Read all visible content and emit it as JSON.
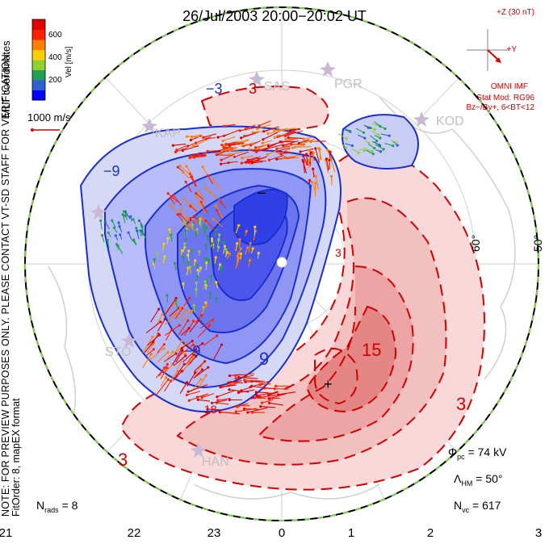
{
  "title": "26/Jul/2003 20:00−20:02 UT",
  "coordinate_label": "MLT coordinates",
  "notes": {
    "preview": "NOTE: FOR PREVIEW PURPOSES ONLY. PLEASE CONTACT VT-SD STAFF FOR VERIFICATION.",
    "fit": "FitOrder: 8, mapEX format"
  },
  "velocity_scale": {
    "label": "Vel [m/s]",
    "ticks": [
      "600",
      "400",
      "200"
    ],
    "colors": [
      "#0000ff",
      "#3060d0",
      "#20a050",
      "#90d030",
      "#ffd000",
      "#ff8000",
      "#ff2000",
      "#e00000"
    ],
    "reference_vector_label": "1000 m/s"
  },
  "imf": {
    "z_label": "+Z (30 nT)",
    "y_label": "+Y",
    "source": "OMNI IMF",
    "stat_mod": "Stat Mod: RG96",
    "bin": "Bz−/By+, 6<BT<12",
    "color": "#d40000"
  },
  "stations": [
    "SAS",
    "PGR",
    "KOD",
    "KAP",
    "STO",
    "HAN"
  ],
  "latitude_labels": [
    "60°",
    "50°"
  ],
  "contour_labels": [
    "−3",
    "3",
    "−9",
    "9",
    "−9",
    "15",
    "3",
    "3",
    "3",
    "18"
  ],
  "extrema_markers": [
    "−",
    "+"
  ],
  "potential_colors": {
    "negative": "#3a4fe0",
    "positive": "#e04040"
  },
  "stats": {
    "phi_pc": {
      "symbol": "Φ",
      "sub": "pc",
      "value": "= 74 kV"
    },
    "lambda_hm": {
      "symbol": "Λ",
      "sub": "HM",
      "value": "= 50°"
    },
    "n_vc": {
      "symbol": "N",
      "sub": "vc",
      "value": "= 617"
    },
    "n_rads": {
      "symbol": "N",
      "sub": "rads",
      "value": "= 8"
    }
  },
  "mlt_hours": [
    "21",
    "22",
    "23",
    "0",
    "1",
    "2",
    "3"
  ]
}
